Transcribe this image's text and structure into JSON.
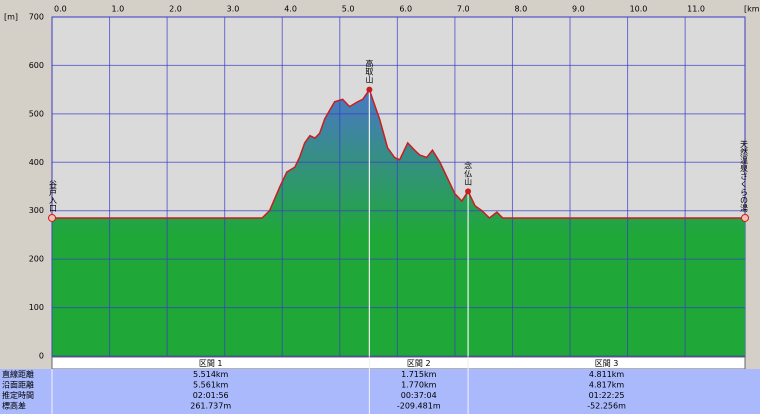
{
  "chart_data": {
    "type": "area",
    "x_unit": "[km]",
    "y_unit": "[m]",
    "x": [
      0,
      3.65,
      3.78,
      3.96,
      4.08,
      4.22,
      4.3,
      4.39,
      4.48,
      4.57,
      4.65,
      4.74,
      4.91,
      5.05,
      5.17,
      5.31,
      5.4,
      5.514,
      5.6,
      5.69,
      5.83,
      5.95,
      6.04,
      6.18,
      6.3,
      6.39,
      6.51,
      6.61,
      6.74,
      6.86,
      7.0,
      7.12,
      7.229,
      7.35,
      7.47,
      7.6,
      7.73,
      7.83,
      12.04
    ],
    "values": [
      285,
      285,
      300,
      350,
      380,
      390,
      410,
      440,
      455,
      450,
      460,
      490,
      525,
      530,
      515,
      525,
      530,
      550,
      520,
      490,
      430,
      410,
      405,
      440,
      425,
      415,
      410,
      425,
      400,
      370,
      335,
      320,
      340,
      310,
      300,
      285,
      297,
      285,
      285
    ],
    "fill_top": "#4a78c8",
    "fill_bottom": "#1fa838",
    "line_color": "#c81e1e",
    "xlim": [
      0,
      12.04
    ],
    "ylim": [
      0,
      700
    ],
    "xticks": [
      {
        "value": 0,
        "label": "0.0"
      },
      {
        "value": 1,
        "label": "1.0"
      },
      {
        "value": 2,
        "label": "2.0"
      },
      {
        "value": 3,
        "label": "3.0"
      },
      {
        "value": 4,
        "label": "4.0"
      },
      {
        "value": 5,
        "label": "5.0"
      },
      {
        "value": 6,
        "label": "6.0"
      },
      {
        "value": 7,
        "label": "7.0"
      },
      {
        "value": 8,
        "label": "8.0"
      },
      {
        "value": 9,
        "label": "9.0"
      },
      {
        "value": 10,
        "label": "10.0"
      },
      {
        "value": 11,
        "label": "11.0"
      }
    ],
    "yticks": [
      0,
      100,
      200,
      300,
      400,
      500,
      600,
      700
    ],
    "grid": true,
    "annotations": [
      {
        "label": "谷戸入口",
        "x": 0,
        "y": 285
      },
      {
        "label": "高取山",
        "x": 5.514,
        "y": 550
      },
      {
        "label": "念仏山",
        "x": 7.229,
        "y": 340
      },
      {
        "label": "天然温泉さくらの湯",
        "x": 12.04,
        "y": 285
      }
    ]
  },
  "table": {
    "columns": [
      "区間 1",
      "区間 2",
      "区間 3"
    ],
    "rows": [
      {
        "label": "直線距離",
        "cells": [
          "5.514km",
          "1.715km",
          "4.811km"
        ]
      },
      {
        "label": "沿面距離",
        "cells": [
          "5.561km",
          "1.770km",
          "4.817km"
        ]
      },
      {
        "label": "推定時間",
        "cells": [
          "02:01:56",
          "00:37:04",
          "01:22:25"
        ]
      },
      {
        "label": "標高差",
        "cells": [
          "261.737m",
          "-209.481m",
          "-52.256m"
        ]
      }
    ]
  }
}
